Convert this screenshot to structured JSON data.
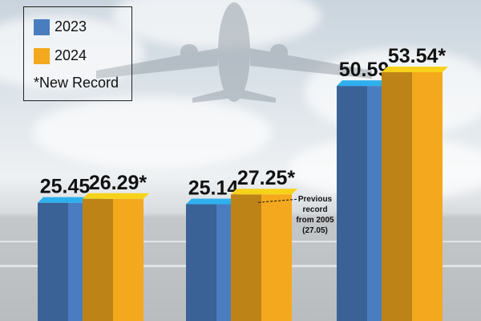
{
  "chart_data": {
    "type": "bar",
    "categories": [
      "",
      "",
      ""
    ],
    "series": [
      {
        "name": "2023",
        "values": [
          25.45,
          25.14,
          50.59
        ],
        "labels": [
          "25.45",
          "25.14",
          "50.59"
        ],
        "color": "#4a7dc0"
      },
      {
        "name": "2024",
        "values": [
          26.29,
          27.25,
          53.54
        ],
        "labels": [
          "26.29*",
          "27.25*",
          "53.54*"
        ],
        "color": "#f4a81d"
      }
    ],
    "ylim": [
      0,
      60
    ],
    "legend_position": "top-left",
    "grid": false,
    "annotation": {
      "text_lines": [
        "Previous",
        "record",
        "from 2005",
        "(27.05)"
      ],
      "target_series": "2024",
      "target_index": 1
    }
  },
  "legend": {
    "items": [
      {
        "label": "2023",
        "color": "#4a7dc0"
      },
      {
        "label": "2024",
        "color": "#f4a81d"
      }
    ],
    "note": "*New Record"
  },
  "background": {
    "icon": "airplane-icon"
  }
}
